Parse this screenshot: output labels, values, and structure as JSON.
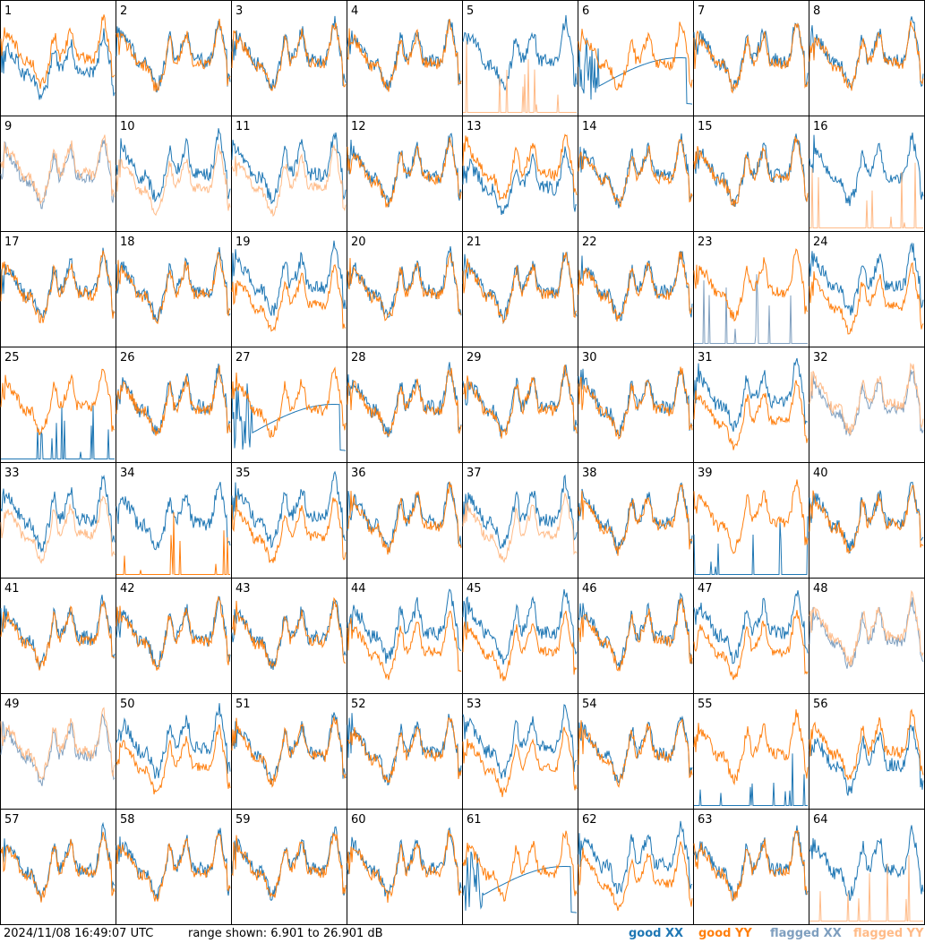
{
  "footer": {
    "timestamp": "2024/11/08 16:49:07 UTC",
    "range": "range shown: 6.901 to 26.901 dB"
  },
  "legend": {
    "good_xx": "good XX",
    "good_yy": "good YY",
    "flagged_xx": "flagged XX",
    "flagged_yy": "flagged YY"
  },
  "colors": {
    "good_xx": "#1f77b4",
    "good_yy": "#ff7f0e",
    "flagged_xx": "#7f9fbf",
    "flagged_yy": "#ffbb88"
  },
  "chart_data": {
    "type": "line",
    "grid": "8x8 small multiples",
    "ylim_db": [
      6.901,
      26.901
    ],
    "panel_labels": [
      "1",
      "2",
      "3",
      "4",
      "5",
      "6",
      "7",
      "8",
      "9",
      "10",
      "11",
      "12",
      "13",
      "14",
      "15",
      "16",
      "17",
      "18",
      "19",
      "20",
      "21",
      "22",
      "23",
      "24",
      "25",
      "26",
      "27",
      "28",
      "29",
      "30",
      "31",
      "32",
      "33",
      "34",
      "35",
      "36",
      "37",
      "38",
      "39",
      "40",
      "41",
      "42",
      "43",
      "44",
      "45",
      "46",
      "47",
      "48",
      "49",
      "50",
      "51",
      "52",
      "53",
      "54",
      "55",
      "56",
      "57",
      "58",
      "59",
      "60",
      "61",
      "62",
      "63",
      "64"
    ],
    "panels": {
      "normal": [
        2,
        3,
        4,
        7,
        12,
        14,
        15,
        17,
        18,
        20,
        21,
        22,
        26,
        28,
        29,
        30,
        36,
        38,
        40,
        41,
        42,
        43,
        46,
        51,
        52,
        54,
        57,
        58,
        59,
        60,
        63
      ],
      "xx_high_yy_low": [
        19,
        24,
        31,
        35,
        44,
        45,
        47,
        50,
        53,
        62
      ],
      "yy_high_xx_low": [
        1,
        13,
        56
      ],
      "xx_flagged_spikes": [
        23,
        25,
        39,
        55
      ],
      "yy_flagged_spikes": [
        5,
        16,
        34,
        64
      ],
      "xx_drop": [
        6,
        27,
        61
      ],
      "yy_flagged_curve": [
        10,
        11,
        33,
        37
      ],
      "mostly_flagged": [
        9,
        32,
        48,
        49
      ]
    }
  }
}
